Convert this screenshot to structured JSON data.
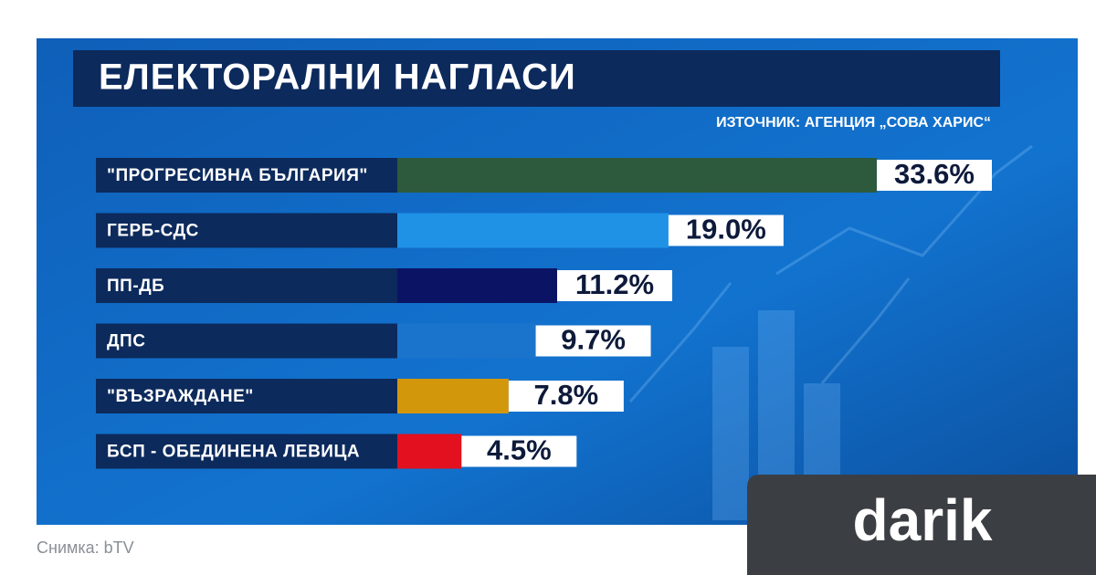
{
  "chart_data": {
    "type": "bar",
    "orientation": "horizontal",
    "title": "ЕЛЕКТОРАЛНИ НАГЛАСИ",
    "subtitle": "ИЗТОЧНИК: АГЕНЦИЯ „СОВА ХАРИС“",
    "categories": [
      "\"ПРОГРЕСИВНА БЪЛГАРИЯ\"",
      "ГЕРБ-СДС",
      "ПП-ДБ",
      "ДПС",
      "\"ВЪЗРАЖДАНЕ\"",
      "БСП - ОБЕДИНЕНА ЛЕВИЦА"
    ],
    "values": [
      33.6,
      19.0,
      11.2,
      9.7,
      7.8,
      4.5
    ],
    "value_labels": [
      "33.6%",
      "19.0%",
      "11.2%",
      "9.7%",
      "7.8%",
      "4.5%"
    ],
    "colors": [
      "#2d5a3c",
      "#1f92e6",
      "#0b1464",
      "#1b74cc",
      "#d3970c",
      "#e3101f"
    ]
  },
  "caption": "Снимка: bTV",
  "logo": "darik"
}
